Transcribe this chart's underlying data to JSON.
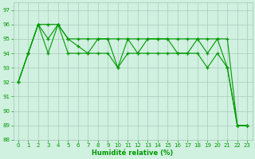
{
  "title": "",
  "xlabel": "Humidité relative (%)",
  "ylabel": "",
  "background_color": "#d0f0e0",
  "grid_color": "#aaccbb",
  "line_color": "#009900",
  "xlim": [
    -0.5,
    23.5
  ],
  "ylim": [
    88,
    97.5
  ],
  "yticks": [
    88,
    89,
    90,
    91,
    92,
    93,
    94,
    95,
    96,
    97
  ],
  "xticks": [
    0,
    1,
    2,
    3,
    4,
    5,
    6,
    7,
    8,
    9,
    10,
    11,
    12,
    13,
    14,
    15,
    16,
    17,
    18,
    19,
    20,
    21,
    22,
    23
  ],
  "line1": [
    92,
    94,
    96,
    96,
    96,
    95,
    95,
    95,
    95,
    95,
    95,
    95,
    95,
    95,
    95,
    95,
    95,
    95,
    95,
    95,
    95,
    95,
    89,
    89
  ],
  "line2": [
    92,
    94,
    96,
    95,
    96,
    95,
    94.5,
    94,
    95,
    95,
    93,
    95,
    94,
    95,
    95,
    95,
    94,
    94,
    95,
    94,
    95,
    93,
    89,
    89
  ],
  "line3": [
    92,
    94,
    96,
    94,
    96,
    94,
    94,
    94,
    94,
    94,
    93,
    94,
    94,
    94,
    94,
    94,
    94,
    94,
    94,
    93,
    94,
    93,
    89,
    89
  ]
}
